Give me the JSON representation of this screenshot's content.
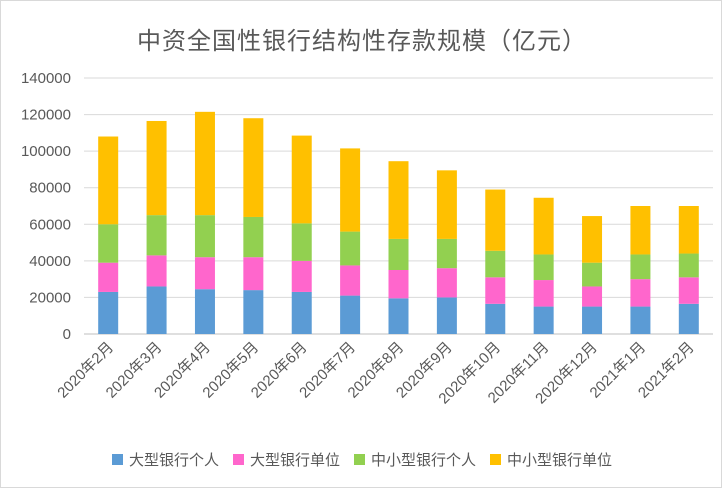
{
  "chart_data": {
    "type": "bar",
    "stacked": true,
    "title": "中资全国性银行结构性存款规模（亿元）",
    "categories": [
      "2020年2月",
      "2020年3月",
      "2020年4月",
      "2020年5月",
      "2020年6月",
      "2020年7月",
      "2020年8月",
      "2020年9月",
      "2020年10月",
      "2020年11月",
      "2020年12月",
      "2021年1月",
      "2021年2月"
    ],
    "series": [
      {
        "name": "大型银行个人",
        "color": "#5b9bd5",
        "values": [
          23000,
          26000,
          24500,
          24000,
          23000,
          21000,
          19500,
          20000,
          16500,
          15000,
          15000,
          15000,
          16500
        ]
      },
      {
        "name": "大型银行单位",
        "color": "#ff66cc",
        "values": [
          16000,
          17000,
          17500,
          18000,
          17000,
          16500,
          15500,
          16000,
          14500,
          14500,
          11000,
          15000,
          14500
        ]
      },
      {
        "name": "中小型银行个人",
        "color": "#92d050",
        "values": [
          21000,
          22000,
          23000,
          22000,
          20500,
          18500,
          17000,
          16000,
          14500,
          14000,
          13000,
          13500,
          13000
        ]
      },
      {
        "name": "中小型银行单位",
        "color": "#ffc000",
        "values": [
          48000,
          51500,
          56500,
          54000,
          48000,
          45500,
          42500,
          37500,
          33500,
          31000,
          25500,
          26500,
          26000
        ]
      }
    ],
    "ylim": [
      0,
      140000
    ],
    "yticks": [
      "0",
      "20000",
      "40000",
      "60000",
      "80000",
      "100000",
      "120000",
      "140000"
    ],
    "grid": true,
    "legend": "bottom"
  }
}
